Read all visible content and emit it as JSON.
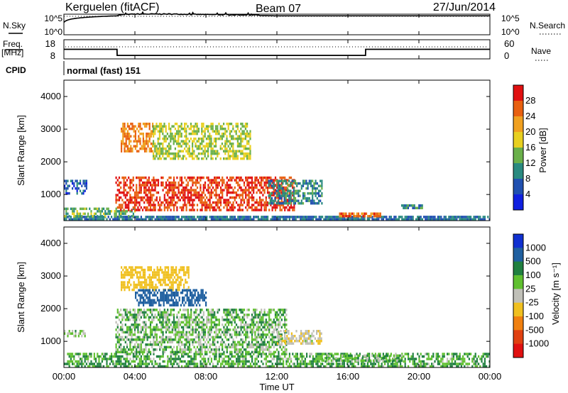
{
  "header": {
    "station": "Kerguelen (fitACF)",
    "beam": "Beam 07",
    "date": "27/Jun/2014"
  },
  "noise_panel": {
    "left_label": "N.Sky",
    "right_label": "N.Search",
    "tick_top": "10^5",
    "tick_bottom": "10^0"
  },
  "freq_panel": {
    "left_label_top": "Freq.",
    "left_label_bottom": "[MHz]",
    "left_tick_top": "18",
    "left_tick_bottom": "8",
    "right_tick_top": "60",
    "right_tick_bottom": "0",
    "right_label": "Nave"
  },
  "cpid_panel": {
    "label": "CPID",
    "value": "normal (fast) 151"
  },
  "xaxis": {
    "label": "Time UT",
    "ticks": [
      "00:00",
      "04:00",
      "08:00",
      "12:00",
      "16:00",
      "20:00",
      "00:00"
    ]
  },
  "yaxis": {
    "label": "Slant Range [km]",
    "ticks": [
      "1000",
      "2000",
      "3000",
      "4000"
    ]
  },
  "power_scale": {
    "label": "Power [dB]",
    "ticks": [
      "4",
      "8",
      "12",
      "16",
      "20",
      "24",
      "28"
    ],
    "colors": [
      "#1020e0",
      "#2050b0",
      "#2a8a80",
      "#6ab04a",
      "#e8d020",
      "#f0a020",
      "#e86010",
      "#e01010"
    ]
  },
  "velocity_scale": {
    "label": "Velocity [m s⁻¹]",
    "ticks": [
      "1000",
      "500",
      "100",
      "25",
      "-25",
      "-100",
      "-500",
      "-1000"
    ],
    "colors": [
      "#1030d0",
      "#2060a0",
      "#208040",
      "#60c030",
      "#c0c0b8",
      "#f0c020",
      "#f08010",
      "#e04010",
      "#e01010"
    ]
  },
  "chart_data": [
    {
      "type": "line",
      "title": "N.Sky",
      "x": [
        0,
        3,
        4,
        6,
        8,
        10,
        12,
        14,
        16,
        18,
        20,
        22,
        24
      ],
      "y": [
        1000,
        40000,
        80000,
        80000,
        60000,
        50000,
        40000,
        40000,
        40000,
        40000,
        40000,
        40000,
        40000
      ],
      "y_scale": "log",
      "ylim": [
        1,
        100000
      ]
    },
    {
      "type": "line",
      "title": "Freq. [MHz]",
      "x": [
        0,
        2.99,
        3.0,
        16.99,
        17.0,
        24
      ],
      "y": [
        13,
        13,
        9.8,
        9.8,
        13,
        13
      ],
      "ylim": [
        8,
        18
      ]
    },
    {
      "type": "heatmap",
      "title": "Power [dB]",
      "xlabel": "Time UT",
      "ylabel": "Slant Range [km]",
      "xlim": [
        0,
        24
      ],
      "ylim": [
        200,
        4500
      ],
      "regions": [
        {
          "t": [
            0,
            24
          ],
          "range": [
            200,
            350
          ],
          "power_db": 8
        },
        {
          "t": [
            0,
            4
          ],
          "range": [
            350,
            600
          ],
          "power_db": 14
        },
        {
          "t": [
            0,
            1.3
          ],
          "range": [
            1050,
            1450
          ],
          "power_db": 6
        },
        {
          "t": [
            2.9,
            13
          ],
          "range": [
            500,
            1550
          ],
          "power_db": 28
        },
        {
          "t": [
            3.2,
            5
          ],
          "range": [
            2300,
            3200
          ],
          "power_db": 24
        },
        {
          "t": [
            5,
            10.5
          ],
          "range": [
            2100,
            3200
          ],
          "power_db": 16
        },
        {
          "t": [
            11.5,
            14.5
          ],
          "range": [
            700,
            1450
          ],
          "power_db": 10
        },
        {
          "t": [
            15.5,
            17.8
          ],
          "range": [
            300,
            450
          ],
          "power_db": 26
        },
        {
          "t": [
            19,
            20.2
          ],
          "range": [
            550,
            700
          ],
          "power_db": 10
        }
      ]
    },
    {
      "type": "heatmap",
      "title": "Velocity [m s-1]",
      "xlabel": "Time UT",
      "ylabel": "Slant Range [km]",
      "xlim": [
        0,
        24
      ],
      "ylim": [
        200,
        4500
      ],
      "regions": [
        {
          "t": [
            0,
            24
          ],
          "range": [
            250,
            650
          ],
          "velocity": 25
        },
        {
          "t": [
            0,
            1.2
          ],
          "range": [
            1150,
            1350
          ],
          "velocity": -25
        },
        {
          "t": [
            2.9,
            12.5
          ],
          "range": [
            650,
            2000
          ],
          "velocity": 0
        },
        {
          "t": [
            3.2,
            7
          ],
          "range": [
            2600,
            3300
          ],
          "velocity": -300
        },
        {
          "t": [
            4,
            8
          ],
          "range": [
            2100,
            2600
          ],
          "velocity": 200
        },
        {
          "t": [
            12,
            14.5
          ],
          "range": [
            900,
            1350
          ],
          "velocity": -80
        },
        {
          "t": [
            14.5,
            19
          ],
          "range": [
            400,
            600
          ],
          "velocity": 0
        }
      ]
    }
  ]
}
